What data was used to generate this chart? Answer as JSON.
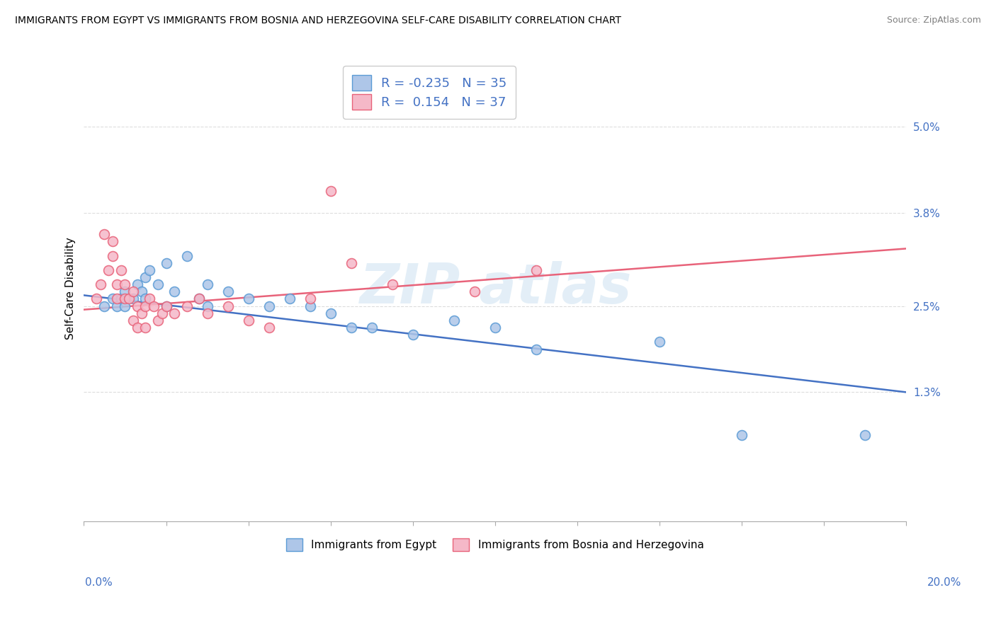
{
  "title": "IMMIGRANTS FROM EGYPT VS IMMIGRANTS FROM BOSNIA AND HERZEGOVINA SELF-CARE DISABILITY CORRELATION CHART",
  "source": "Source: ZipAtlas.com",
  "ylabel": "Self-Care Disability",
  "yticks_labels": [
    "1.3%",
    "2.5%",
    "3.8%",
    "5.0%"
  ],
  "ytick_vals": [
    0.013,
    0.025,
    0.038,
    0.05
  ],
  "xlim": [
    0.0,
    0.2
  ],
  "ylim": [
    -0.005,
    0.06
  ],
  "legend_bottom_labels": [
    "Immigrants from Egypt",
    "Immigrants from Bosnia and Herzegovina"
  ],
  "egypt_color": "#aec6e8",
  "bosnia_color": "#f5b8c8",
  "egypt_edge_color": "#5b9bd5",
  "bosnia_edge_color": "#e8637a",
  "egypt_line_color": "#4472c4",
  "bosnia_line_color": "#e8637a",
  "R_egypt": -0.235,
  "N_egypt": 35,
  "R_bosnia": 0.154,
  "N_bosnia": 37,
  "egypt_scatter": [
    [
      0.005,
      0.025
    ],
    [
      0.007,
      0.026
    ],
    [
      0.008,
      0.025
    ],
    [
      0.009,
      0.026
    ],
    [
      0.01,
      0.027
    ],
    [
      0.01,
      0.025
    ],
    [
      0.012,
      0.026
    ],
    [
      0.013,
      0.028
    ],
    [
      0.014,
      0.027
    ],
    [
      0.015,
      0.029
    ],
    [
      0.015,
      0.026
    ],
    [
      0.016,
      0.03
    ],
    [
      0.018,
      0.028
    ],
    [
      0.02,
      0.031
    ],
    [
      0.02,
      0.025
    ],
    [
      0.022,
      0.027
    ],
    [
      0.025,
      0.032
    ],
    [
      0.028,
      0.026
    ],
    [
      0.03,
      0.028
    ],
    [
      0.03,
      0.025
    ],
    [
      0.035,
      0.027
    ],
    [
      0.04,
      0.026
    ],
    [
      0.045,
      0.025
    ],
    [
      0.05,
      0.026
    ],
    [
      0.055,
      0.025
    ],
    [
      0.06,
      0.024
    ],
    [
      0.065,
      0.022
    ],
    [
      0.07,
      0.022
    ],
    [
      0.08,
      0.021
    ],
    [
      0.09,
      0.023
    ],
    [
      0.1,
      0.022
    ],
    [
      0.11,
      0.019
    ],
    [
      0.14,
      0.02
    ],
    [
      0.16,
      0.007
    ],
    [
      0.19,
      0.007
    ]
  ],
  "bosnia_scatter": [
    [
      0.003,
      0.026
    ],
    [
      0.004,
      0.028
    ],
    [
      0.005,
      0.035
    ],
    [
      0.006,
      0.03
    ],
    [
      0.007,
      0.034
    ],
    [
      0.007,
      0.032
    ],
    [
      0.008,
      0.028
    ],
    [
      0.008,
      0.026
    ],
    [
      0.009,
      0.03
    ],
    [
      0.01,
      0.028
    ],
    [
      0.01,
      0.026
    ],
    [
      0.011,
      0.026
    ],
    [
      0.012,
      0.023
    ],
    [
      0.012,
      0.027
    ],
    [
      0.013,
      0.022
    ],
    [
      0.013,
      0.025
    ],
    [
      0.014,
      0.024
    ],
    [
      0.015,
      0.022
    ],
    [
      0.015,
      0.025
    ],
    [
      0.016,
      0.026
    ],
    [
      0.017,
      0.025
    ],
    [
      0.018,
      0.023
    ],
    [
      0.019,
      0.024
    ],
    [
      0.02,
      0.025
    ],
    [
      0.022,
      0.024
    ],
    [
      0.025,
      0.025
    ],
    [
      0.028,
      0.026
    ],
    [
      0.03,
      0.024
    ],
    [
      0.035,
      0.025
    ],
    [
      0.04,
      0.023
    ],
    [
      0.045,
      0.022
    ],
    [
      0.055,
      0.026
    ],
    [
      0.06,
      0.041
    ],
    [
      0.065,
      0.031
    ],
    [
      0.075,
      0.028
    ],
    [
      0.095,
      0.027
    ],
    [
      0.11,
      0.03
    ]
  ]
}
